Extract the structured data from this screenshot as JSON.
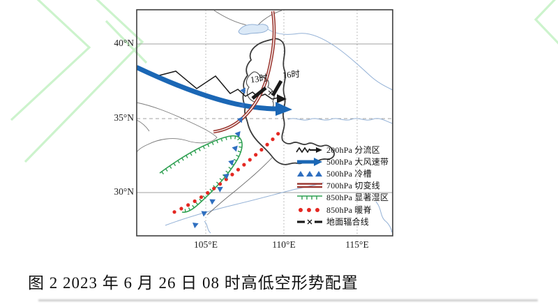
{
  "colors": {
    "watermark_green": "#ccf3cc",
    "jet_blue": "#1b67b5",
    "shear_red": "#9c3a33",
    "moist_green": "#2fa052",
    "warm_red": "#e42822",
    "trough_blue": "#2f6fc0",
    "ink_black": "#1a1a1a",
    "river_blue": "#93b1d6",
    "boundary_gray": "#7a7a7a",
    "grid_gray": "#a0a0a0",
    "province_dark": "#3b3b3b",
    "frame_gray": "#3f3f3f"
  },
  "figure": {
    "caption": "图 2 2023 年 6 月 26 日 08 时高低空形势配置"
  },
  "map": {
    "y_ticks": [
      "40°N",
      "35°N",
      "30°N"
    ],
    "x_ticks": [
      "105°E",
      "110°E",
      "115°E"
    ],
    "annotations": {
      "t13": "13时",
      "t16": "16时"
    },
    "legend": {
      "items": [
        {
          "symbol": "jagged-arrow",
          "label": "200hPa 分流区"
        },
        {
          "symbol": "thick-blue-arrow",
          "label": "500hPa 大风速带"
        },
        {
          "symbol": "blue-triangles",
          "label": "500hPa 冷槽"
        },
        {
          "symbol": "double-red-line",
          "label": "700hPa 切变线"
        },
        {
          "symbol": "green-tick-line",
          "label": "850hPa 显著湿区"
        },
        {
          "symbol": "red-dots",
          "label": "850hPa 暖脊"
        },
        {
          "symbol": "dash-x-dash",
          "label": "地面辐合线"
        }
      ]
    }
  }
}
